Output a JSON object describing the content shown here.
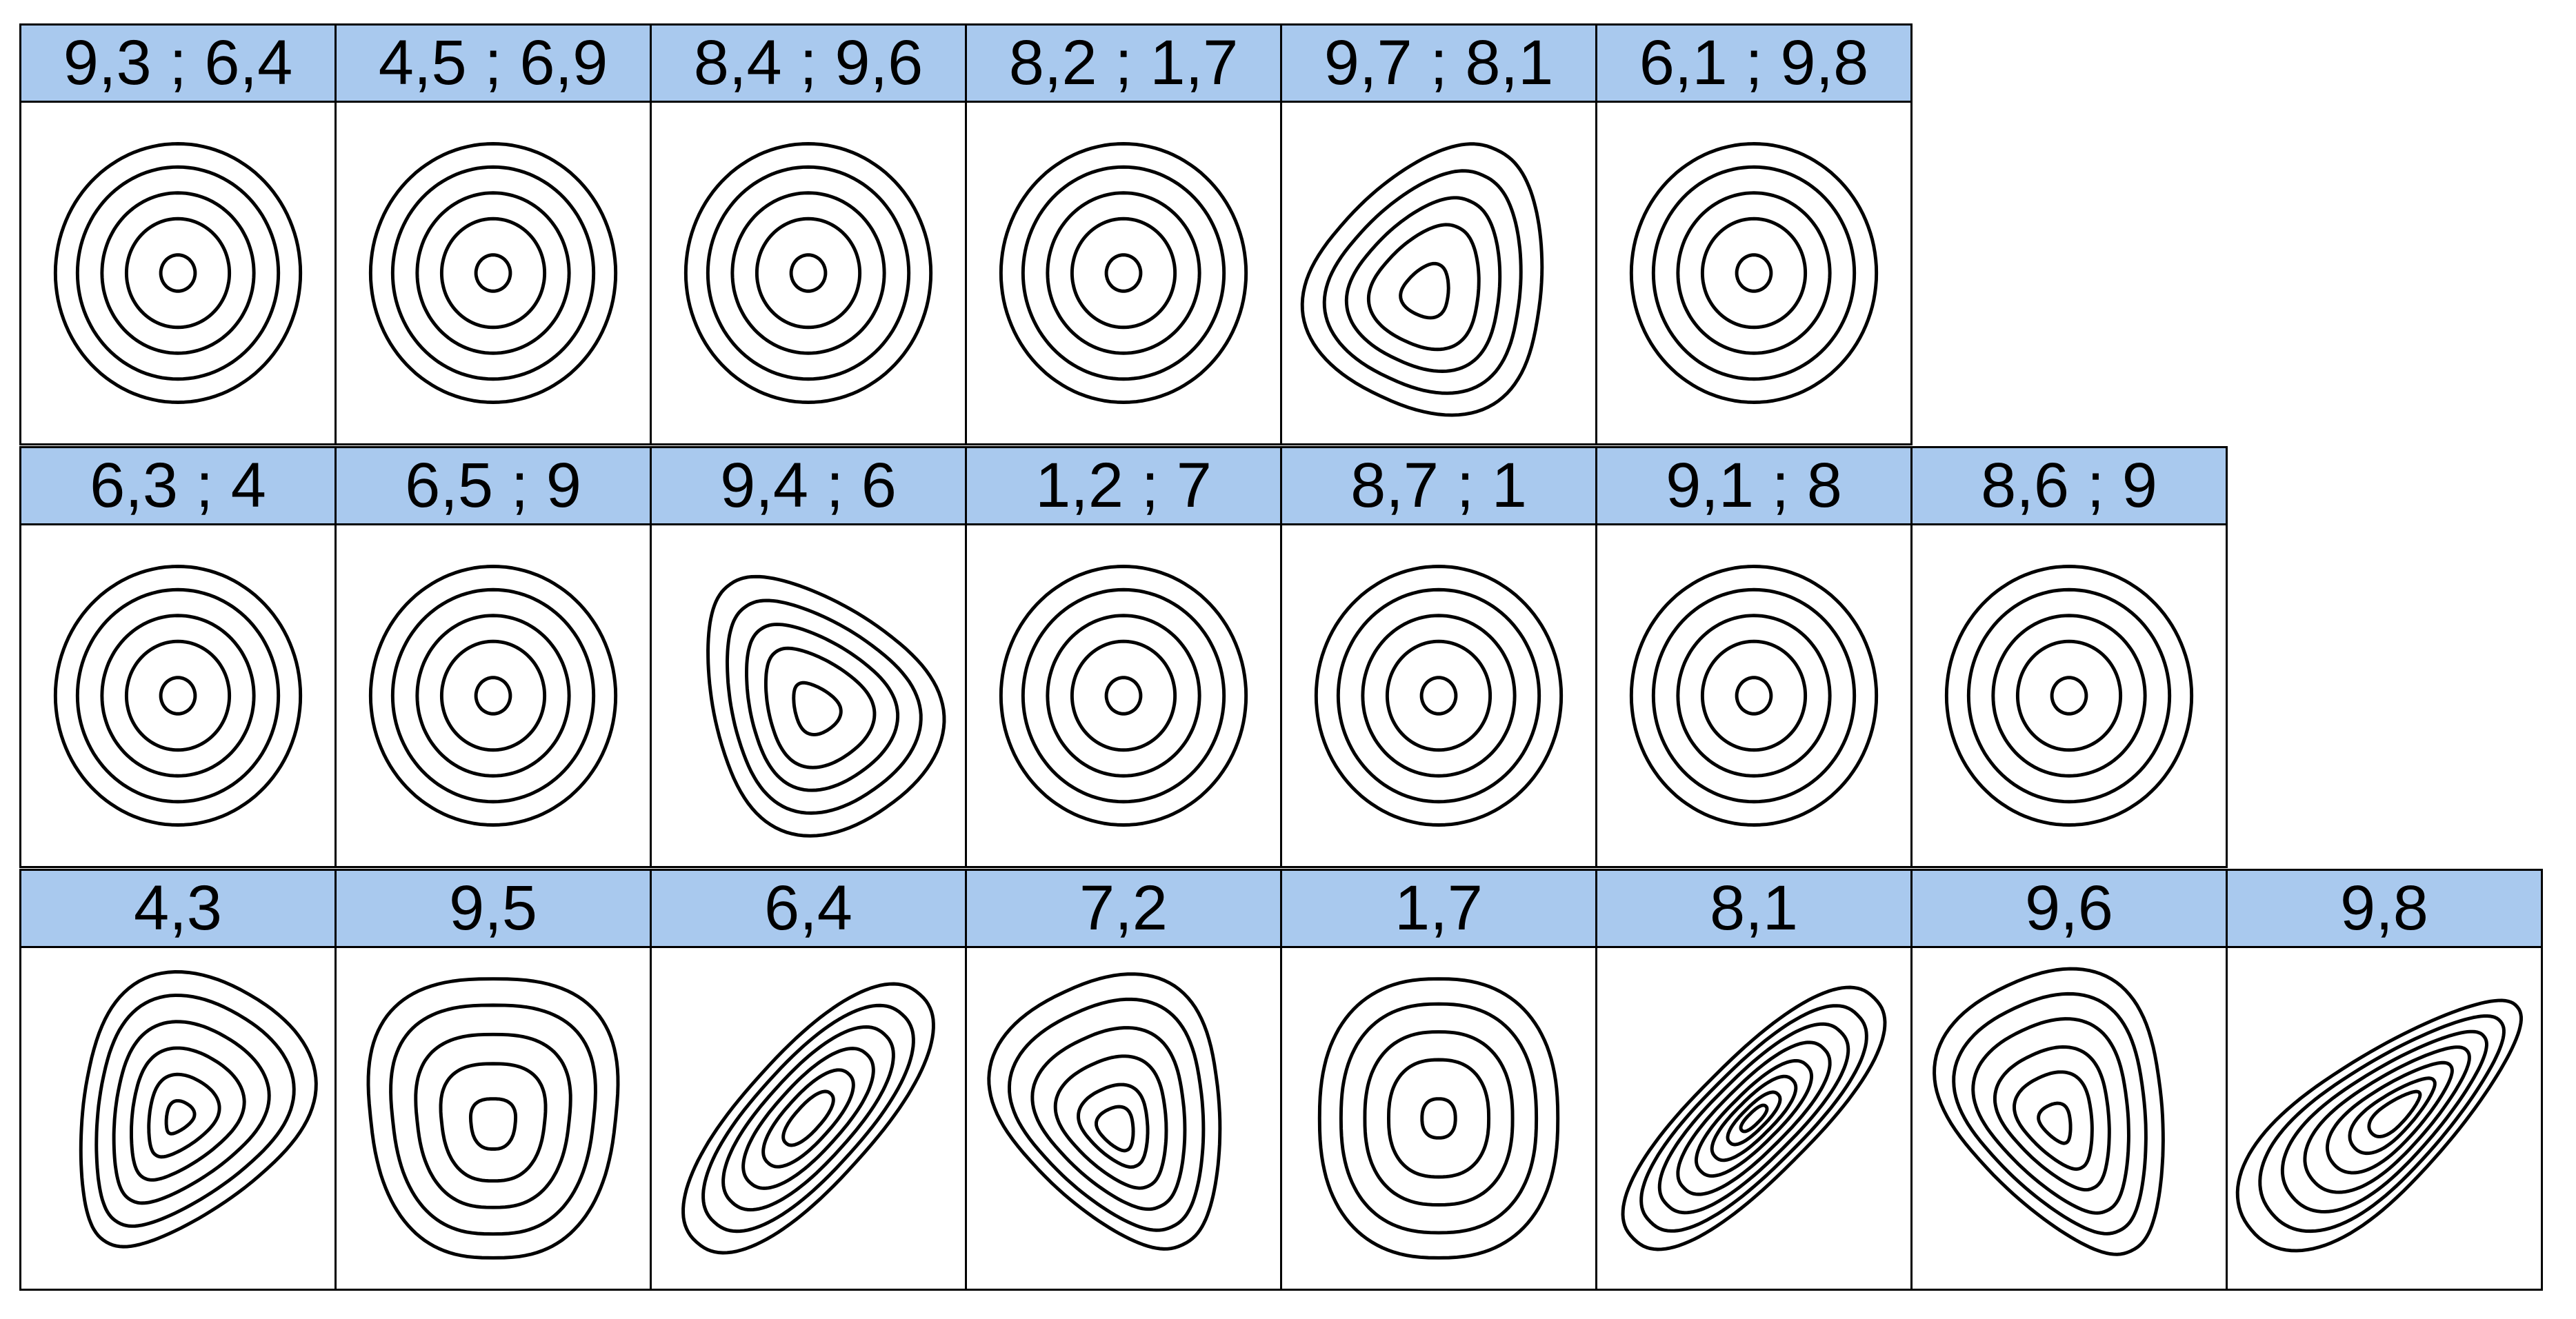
{
  "rows": [
    {
      "cells": [
        {
          "label": "9,3 ; 6,4",
          "pattern": "concentric-circles"
        },
        {
          "label": "4,5 ; 6,9",
          "pattern": "concentric-circles"
        },
        {
          "label": "8,4 ; 9,6",
          "pattern": "concentric-circles"
        },
        {
          "label": "8,2 ; 1,7",
          "pattern": "concentric-circles"
        },
        {
          "label": "9,7 ; 8,1",
          "pattern": "skewed-upper-left"
        },
        {
          "label": "6,1 ; 9,8",
          "pattern": "concentric-circles"
        }
      ]
    },
    {
      "cells": [
        {
          "label": "6,3 ; 4",
          "pattern": "concentric-circles"
        },
        {
          "label": "6,5 ; 9",
          "pattern": "concentric-circles"
        },
        {
          "label": "9,4 ; 6",
          "pattern": "teardrop-upper-left"
        },
        {
          "label": "1,2 ; 7",
          "pattern": "concentric-circles"
        },
        {
          "label": "8,7 ; 1",
          "pattern": "concentric-circles"
        },
        {
          "label": "9,1 ; 8",
          "pattern": "concentric-circles"
        },
        {
          "label": "8,6 ; 9",
          "pattern": "concentric-circles"
        }
      ]
    },
    {
      "cells": [
        {
          "label": "4,3",
          "pattern": "teardrop-lower-left"
        },
        {
          "label": "9,5",
          "pattern": "rounded-square"
        },
        {
          "label": "6,4",
          "pattern": "diagonal-ellipse"
        },
        {
          "label": "7,2",
          "pattern": "teardrop-lower-right"
        },
        {
          "label": "1,7",
          "pattern": "concentric-rounded"
        },
        {
          "label": "8,1",
          "pattern": "diagonal-tight"
        },
        {
          "label": "9,6",
          "pattern": "teardrop-lower-right-long"
        },
        {
          "label": "9,8",
          "pattern": "diagonal-teardrop-upper-right"
        }
      ]
    }
  ]
}
